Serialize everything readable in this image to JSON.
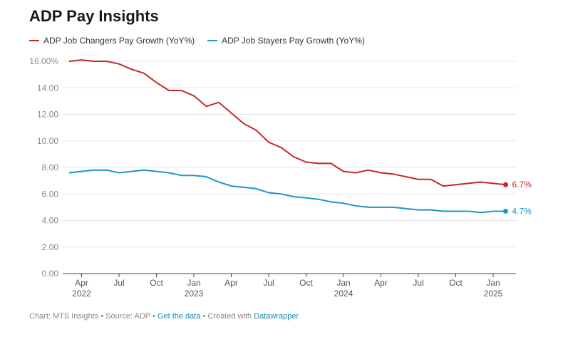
{
  "chart_data": {
    "type": "line",
    "title": "ADP Pay Insights",
    "ylim": [
      0,
      16
    ],
    "y_ticks": [
      "16.00%",
      "14.00",
      "12.00",
      "10.00",
      "8.00",
      "6.00",
      "4.00",
      "2.00",
      "0.00"
    ],
    "y_tick_values": [
      16,
      14,
      12,
      10,
      8,
      6,
      4,
      2,
      0
    ],
    "x_ticks": [
      {
        "month": "Apr",
        "year": "2022",
        "index": 1
      },
      {
        "month": "Jul",
        "year": "",
        "index": 4
      },
      {
        "month": "Oct",
        "year": "",
        "index": 7
      },
      {
        "month": "Jan",
        "year": "2023",
        "index": 10
      },
      {
        "month": "Apr",
        "year": "",
        "index": 13
      },
      {
        "month": "Jul",
        "year": "",
        "index": 16
      },
      {
        "month": "Oct",
        "year": "",
        "index": 19
      },
      {
        "month": "Jan",
        "year": "2024",
        "index": 22
      },
      {
        "month": "Apr",
        "year": "",
        "index": 25
      },
      {
        "month": "Jul",
        "year": "",
        "index": 28
      },
      {
        "month": "Oct",
        "year": "",
        "index": 31
      },
      {
        "month": "Jan",
        "year": "2025",
        "index": 34
      }
    ],
    "series": [
      {
        "name": "ADP Job Changers Pay Growth (YoY%)",
        "color": "#c62828",
        "end_label": "6.7%",
        "values": [
          16.0,
          16.1,
          16.0,
          16.0,
          15.8,
          15.4,
          15.1,
          14.4,
          13.8,
          13.8,
          13.4,
          12.6,
          12.9,
          12.1,
          11.3,
          10.8,
          9.9,
          9.5,
          8.8,
          8.4,
          8.3,
          8.3,
          7.7,
          7.6,
          7.8,
          7.6,
          7.5,
          7.3,
          7.1,
          7.1,
          6.6,
          6.7,
          6.8,
          6.9,
          6.8,
          6.7
        ]
      },
      {
        "name": "ADP Job Stayers Pay Growth (YoY%)",
        "color": "#1e96c8",
        "end_label": "4.7%",
        "values": [
          7.6,
          7.7,
          7.8,
          7.8,
          7.6,
          7.7,
          7.8,
          7.7,
          7.6,
          7.4,
          7.4,
          7.3,
          6.9,
          6.6,
          6.5,
          6.4,
          6.1,
          6.0,
          5.8,
          5.7,
          5.6,
          5.4,
          5.3,
          5.1,
          5.0,
          5.0,
          5.0,
          4.9,
          4.8,
          4.8,
          4.7,
          4.7,
          4.7,
          4.6,
          4.7,
          4.7
        ]
      }
    ]
  },
  "footer": {
    "chart_by": "Chart: MTS Insights • Source: ADP • ",
    "get_data": "Get the data",
    "created": " • Created with ",
    "tool": "Datawrapper"
  }
}
